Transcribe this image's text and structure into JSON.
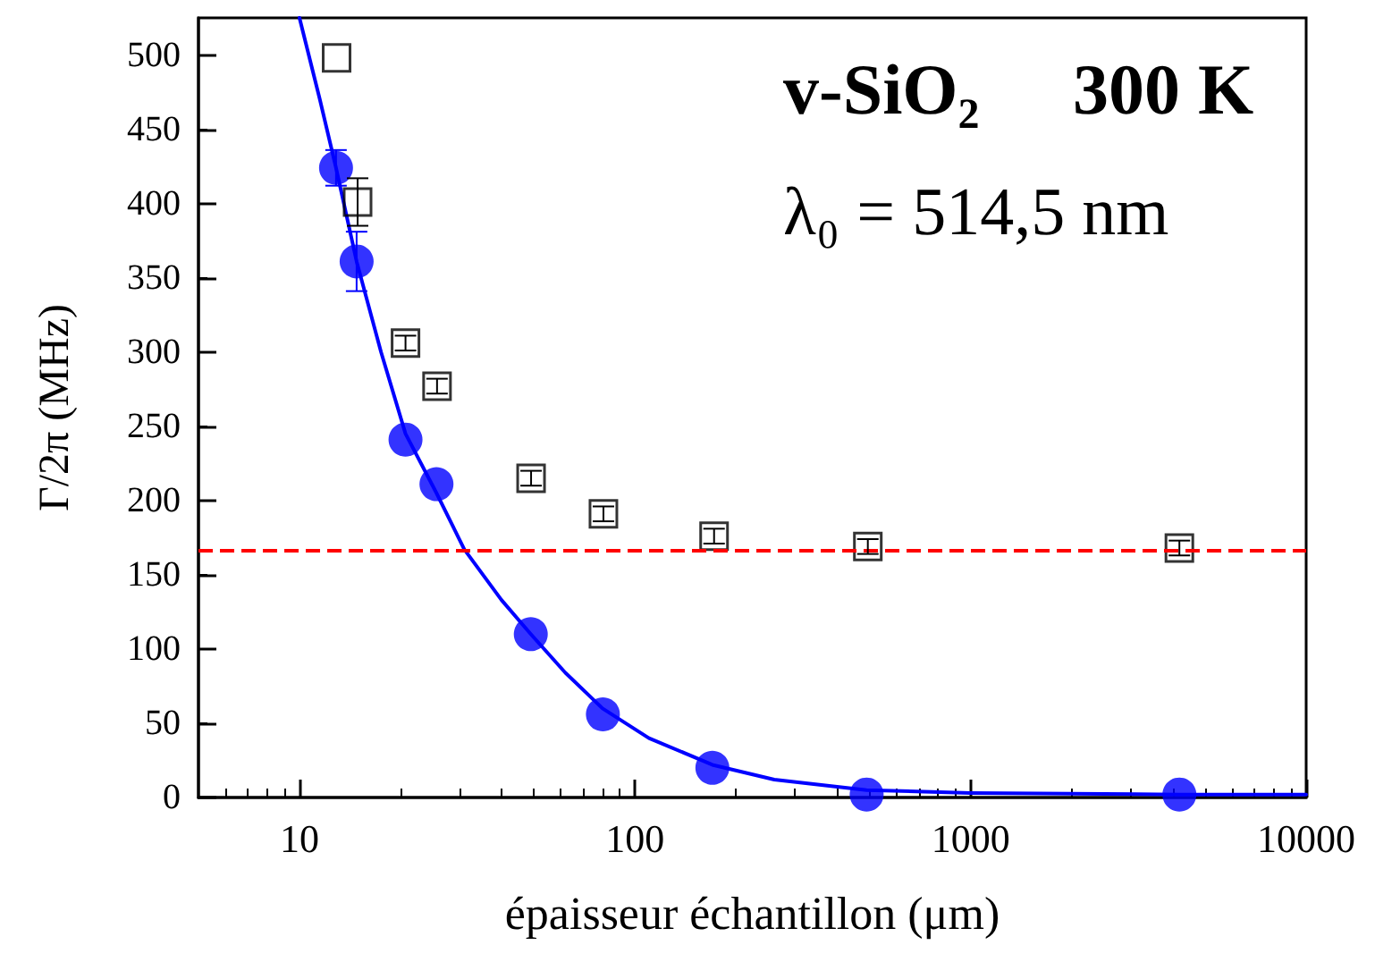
{
  "chart_data": {
    "type": "scatter",
    "xlabel": "épaisseur échantillon (μm)",
    "ylabel": "Γ/2π (MHz)",
    "annotations": [
      "v-SiO₂",
      "300 K",
      "λ₀ = 514,5 nm"
    ],
    "log": "x",
    "xlim": [
      5,
      10000
    ],
    "xticks": [
      10,
      100,
      1000,
      10000
    ],
    "ylim": [
      0,
      525
    ],
    "yticks": [
      0,
      50,
      100,
      150,
      200,
      250,
      300,
      350,
      400,
      450,
      500
    ],
    "grid": false,
    "series": [
      {
        "type": "line",
        "color": "#0000ff",
        "marker": "none",
        "line_style": "solid",
        "x": [
          10,
          11.5,
          12.85,
          14.8,
          17.5,
          20.7,
          25.6,
          31,
          40,
          48.9,
          62,
          80,
          110,
          170,
          260,
          490,
          1000,
          4190,
          10000
        ],
        "values": [
          525,
          470,
          424,
          361,
          300,
          245,
          205,
          167,
          133,
          110,
          84,
          60,
          40,
          22,
          12,
          5,
          3,
          2,
          2
        ]
      },
      {
        "color": "#0000ff",
        "marker": "circle",
        "x": [
          12.85,
          14.8,
          20.7,
          25.6,
          48.9,
          80.2,
          170,
          490,
          4190
        ],
        "values": [
          424,
          361,
          241,
          211,
          110,
          56,
          20,
          2,
          2
        ],
        "errors": [
          12,
          20,
          null,
          null,
          null,
          null,
          null,
          null,
          null
        ]
      },
      {
        "color": "#000000",
        "marker": "square",
        "x": [
          12.9,
          14.9,
          20.7,
          25.7,
          49,
          80.5,
          172,
          494,
          4190
        ],
        "values": [
          498,
          401,
          306,
          277,
          215,
          191,
          176,
          169,
          168
        ],
        "errors": [
          null,
          16,
          5,
          5,
          5,
          5,
          5,
          5,
          5
        ]
      }
    ],
    "ref_lines": [
      {
        "axis": "y",
        "value": 167,
        "color": "#ff0000",
        "line_style": "dashed"
      }
    ]
  }
}
